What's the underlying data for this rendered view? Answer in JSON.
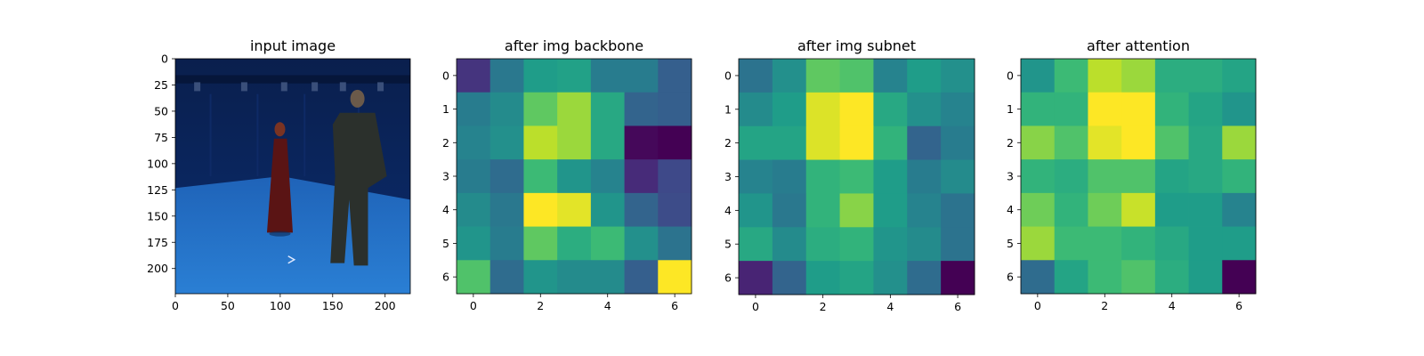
{
  "chart_data": [
    {
      "type": "image",
      "title": "input image",
      "image_description": "Photo of a blue-screen motion capture room with two people standing: a woman in a long dark red dress on the left and a man in a dark jacket and trousers on the right.",
      "xlim": [
        0,
        224
      ],
      "ylim": [
        224,
        0
      ],
      "x_ticks": [
        0,
        50,
        100,
        150,
        200
      ],
      "y_ticks": [
        0,
        25,
        50,
        75,
        100,
        125,
        150,
        175,
        200
      ]
    },
    {
      "type": "heatmap",
      "title": "after img backbone",
      "colormap": "viridis",
      "x_ticks": [
        0,
        2,
        4,
        6
      ],
      "y_ticks": [
        0,
        1,
        2,
        3,
        4,
        5,
        6
      ],
      "values": [
        [
          0.15,
          0.4,
          0.55,
          0.57,
          0.42,
          0.42,
          0.3
        ],
        [
          0.42,
          0.48,
          0.75,
          0.85,
          0.6,
          0.32,
          0.3
        ],
        [
          0.45,
          0.5,
          0.9,
          0.85,
          0.6,
          0.02,
          0.0
        ],
        [
          0.42,
          0.35,
          0.68,
          0.52,
          0.45,
          0.12,
          0.22
        ],
        [
          0.48,
          0.4,
          1.0,
          0.96,
          0.52,
          0.32,
          0.23
        ],
        [
          0.52,
          0.42,
          0.75,
          0.62,
          0.68,
          0.5,
          0.38
        ],
        [
          0.72,
          0.35,
          0.52,
          0.48,
          0.48,
          0.3,
          1.0
        ]
      ]
    },
    {
      "type": "heatmap",
      "title": "after img subnet",
      "colormap": "viridis",
      "x_ticks": [
        0,
        2,
        4,
        6
      ],
      "y_ticks": [
        0,
        1,
        2,
        3,
        4,
        5,
        6
      ],
      "values": [
        [
          0.38,
          0.5,
          0.75,
          0.72,
          0.45,
          0.55,
          0.5
        ],
        [
          0.48,
          0.55,
          0.95,
          1.0,
          0.6,
          0.5,
          0.45
        ],
        [
          0.58,
          0.58,
          0.95,
          1.0,
          0.65,
          0.32,
          0.42
        ],
        [
          0.45,
          0.42,
          0.65,
          0.68,
          0.55,
          0.42,
          0.48
        ],
        [
          0.52,
          0.4,
          0.65,
          0.82,
          0.55,
          0.45,
          0.38
        ],
        [
          0.6,
          0.48,
          0.62,
          0.65,
          0.52,
          0.48,
          0.38
        ],
        [
          0.1,
          0.32,
          0.55,
          0.58,
          0.5,
          0.35,
          0.0
        ]
      ]
    },
    {
      "type": "heatmap",
      "title": "after attention",
      "colormap": "viridis",
      "x_ticks": [
        0,
        2,
        4,
        6
      ],
      "y_ticks": [
        0,
        1,
        2,
        3,
        4,
        5,
        6
      ],
      "values": [
        [
          0.52,
          0.68,
          0.9,
          0.85,
          0.62,
          0.62,
          0.58
        ],
        [
          0.65,
          0.65,
          1.0,
          1.0,
          0.65,
          0.58,
          0.52
        ],
        [
          0.82,
          0.72,
          0.96,
          1.0,
          0.72,
          0.6,
          0.85
        ],
        [
          0.65,
          0.62,
          0.72,
          0.72,
          0.58,
          0.6,
          0.65
        ],
        [
          0.78,
          0.65,
          0.78,
          0.92,
          0.55,
          0.55,
          0.45
        ],
        [
          0.85,
          0.68,
          0.68,
          0.65,
          0.6,
          0.55,
          0.55
        ],
        [
          0.35,
          0.58,
          0.68,
          0.72,
          0.62,
          0.55,
          0.0
        ]
      ]
    }
  ],
  "colors": {
    "backdrop_blue": "#0b2c6e",
    "floor_blue": "#2a7fd4",
    "woman_dress": "#5a1414",
    "man_clothes": "#2b302c"
  }
}
